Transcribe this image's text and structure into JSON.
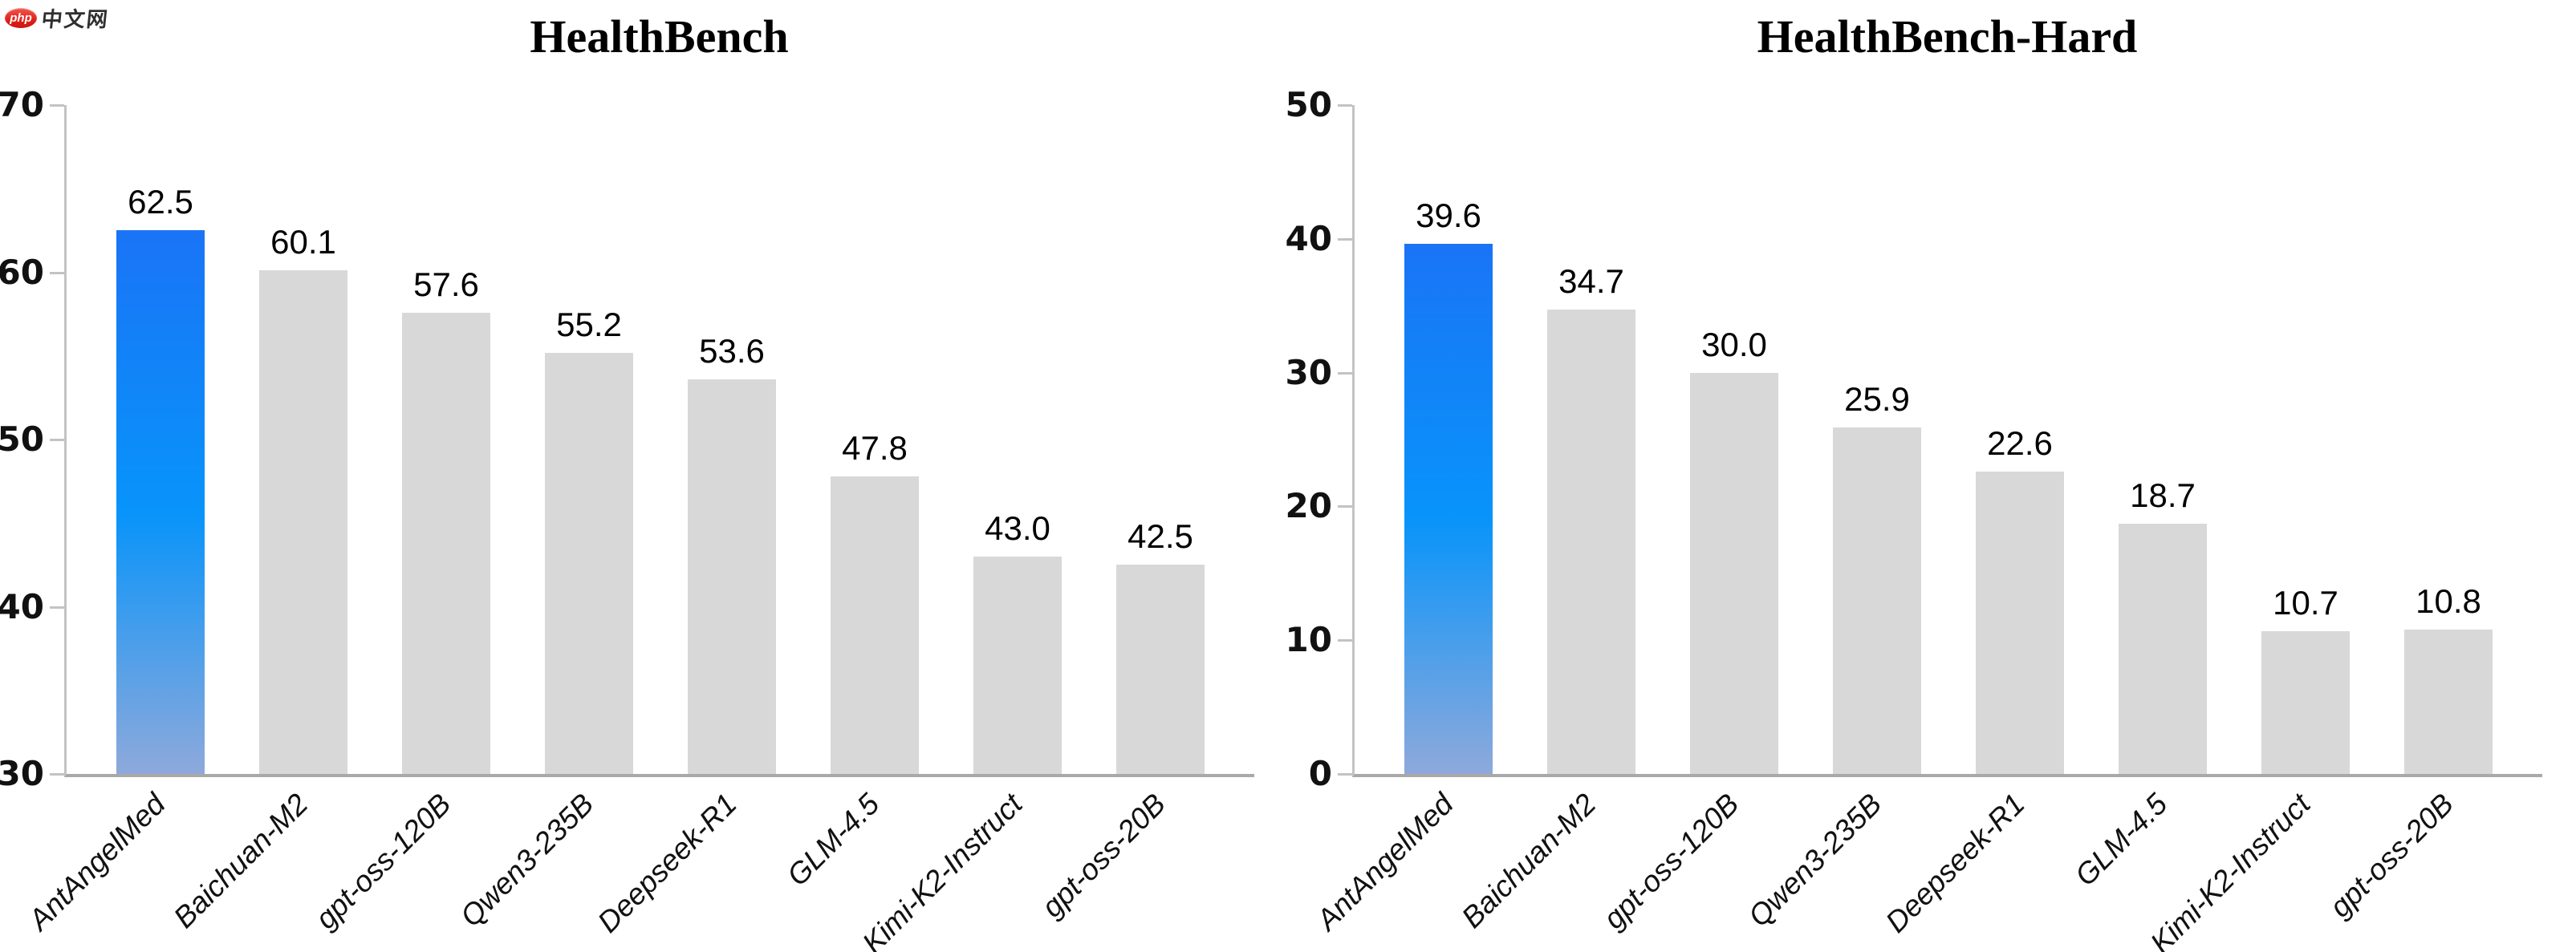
{
  "watermark": {
    "badge_text": "php",
    "site_text": "中文网",
    "badge_color": "#e0201a",
    "text_color": "#2f2f2f"
  },
  "chart_data": [
    {
      "type": "bar",
      "title": "HealthBench",
      "categories": [
        "AntAngelMed",
        "Baichuan-M2",
        "gpt-oss-120B",
        "Qwen3-235B",
        "Deepseek-R1",
        "GLM-4.5",
        "Kimi-K2-Instruct",
        "gpt-oss-20B"
      ],
      "values": [
        62.5,
        60.1,
        57.6,
        55.2,
        53.6,
        47.8,
        43.0,
        42.5
      ],
      "value_label_decimals": 1,
      "xlabel": "",
      "ylabel": "",
      "ylim": [
        30,
        70
      ],
      "yticks": [
        30,
        40,
        50,
        60,
        70
      ],
      "grid": false,
      "legend": "none",
      "highlight_index": 0,
      "highlight_category": "AntAngelMed",
      "bar_color_default": "#d8d8d8",
      "highlight_gradient_top": "#1a74f6",
      "highlight_gradient_mid": "#0894fa",
      "highlight_gradient_bottom": "#8ea9db"
    },
    {
      "type": "bar",
      "title": "HealthBench-Hard",
      "categories": [
        "AntAngelMed",
        "Baichuan-M2",
        "gpt-oss-120B",
        "Qwen3-235B",
        "Deepseek-R1",
        "GLM-4.5",
        "Kimi-K2-Instruct",
        "gpt-oss-20B"
      ],
      "values": [
        39.6,
        34.7,
        30.0,
        25.9,
        22.6,
        18.7,
        10.7,
        10.8
      ],
      "value_label_decimals": 1,
      "xlabel": "",
      "ylabel": "",
      "ylim": [
        0,
        50
      ],
      "yticks": [
        0,
        10,
        20,
        30,
        40,
        50
      ],
      "grid": false,
      "legend": "none",
      "highlight_index": 0,
      "highlight_category": "AntAngelMed",
      "bar_color_default": "#d8d8d8",
      "highlight_gradient_top": "#1a74f6",
      "highlight_gradient_mid": "#0894fa",
      "highlight_gradient_bottom": "#8ea9db"
    }
  ]
}
